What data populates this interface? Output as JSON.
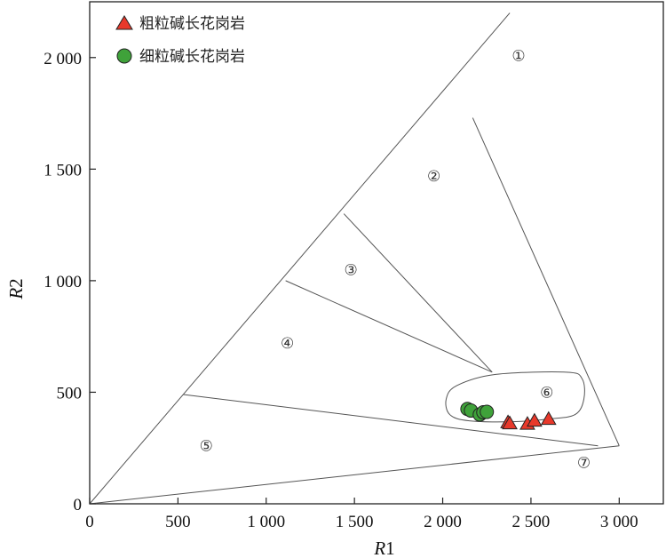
{
  "chart_data": {
    "type": "scatter",
    "xlabel": "R1",
    "ylabel": "R2",
    "xlim": [
      0,
      3250
    ],
    "ylim": [
      0,
      2250
    ],
    "x_ticks": [
      0,
      500,
      1000,
      1500,
      2000,
      2500,
      3000
    ],
    "y_ticks": [
      0,
      500,
      1000,
      1500,
      2000
    ],
    "x_tick_labels": [
      "0",
      "500",
      "1 000",
      "1 500",
      "2 000",
      "2 500",
      "3 000"
    ],
    "y_tick_labels": [
      "0",
      "500",
      "1 000",
      "1 500",
      "2 000"
    ],
    "grid": false,
    "legend_position": "top-left",
    "series": [
      {
        "name": "粗粒碱长花岗岩",
        "marker": "triangle",
        "color": "#e8392b",
        "points": [
          [
            2370,
            365
          ],
          [
            2380,
            360
          ],
          [
            2480,
            358
          ],
          [
            2520,
            372
          ],
          [
            2600,
            380
          ]
        ]
      },
      {
        "name": "细粒碱长花岗岩",
        "marker": "circle",
        "color": "#3fa23a",
        "points": [
          [
            2140,
            425
          ],
          [
            2160,
            418
          ],
          [
            2210,
            400
          ],
          [
            2230,
            410
          ],
          [
            2250,
            412
          ]
        ]
      }
    ],
    "boundaries": [
      {
        "from": [
          0,
          0
        ],
        "to": [
          2380,
          2200
        ]
      },
      {
        "from": [
          0,
          0
        ],
        "to": [
          3000,
          260
        ]
      },
      {
        "from": [
          2170,
          1730
        ],
        "to": [
          3000,
          260
        ]
      },
      {
        "from": [
          530,
          490
        ],
        "to": [
          2880,
          260
        ]
      },
      {
        "from": [
          1440,
          1300
        ],
        "to": [
          2280,
          590
        ]
      },
      {
        "from": [
          1110,
          1000
        ],
        "to": [
          2280,
          590
        ]
      }
    ],
    "field_6_outline": [
      [
        2020,
        470
      ],
      [
        2080,
        530
      ],
      [
        2300,
        580
      ],
      [
        2700,
        590
      ],
      [
        2790,
        560
      ],
      [
        2800,
        470
      ],
      [
        2750,
        400
      ],
      [
        2600,
        380
      ],
      [
        2400,
        368
      ],
      [
        2150,
        372
      ],
      [
        2040,
        400
      ]
    ],
    "regions": [
      {
        "label": "①",
        "x": 2430,
        "y": 2010
      },
      {
        "label": "②",
        "x": 1950,
        "y": 1470
      },
      {
        "label": "③",
        "x": 1480,
        "y": 1050
      },
      {
        "label": "④",
        "x": 1120,
        "y": 720
      },
      {
        "label": "⑤",
        "x": 660,
        "y": 260
      },
      {
        "label": "⑥",
        "x": 2590,
        "y": 500
      },
      {
        "label": "⑦",
        "x": 2800,
        "y": 185
      }
    ]
  }
}
